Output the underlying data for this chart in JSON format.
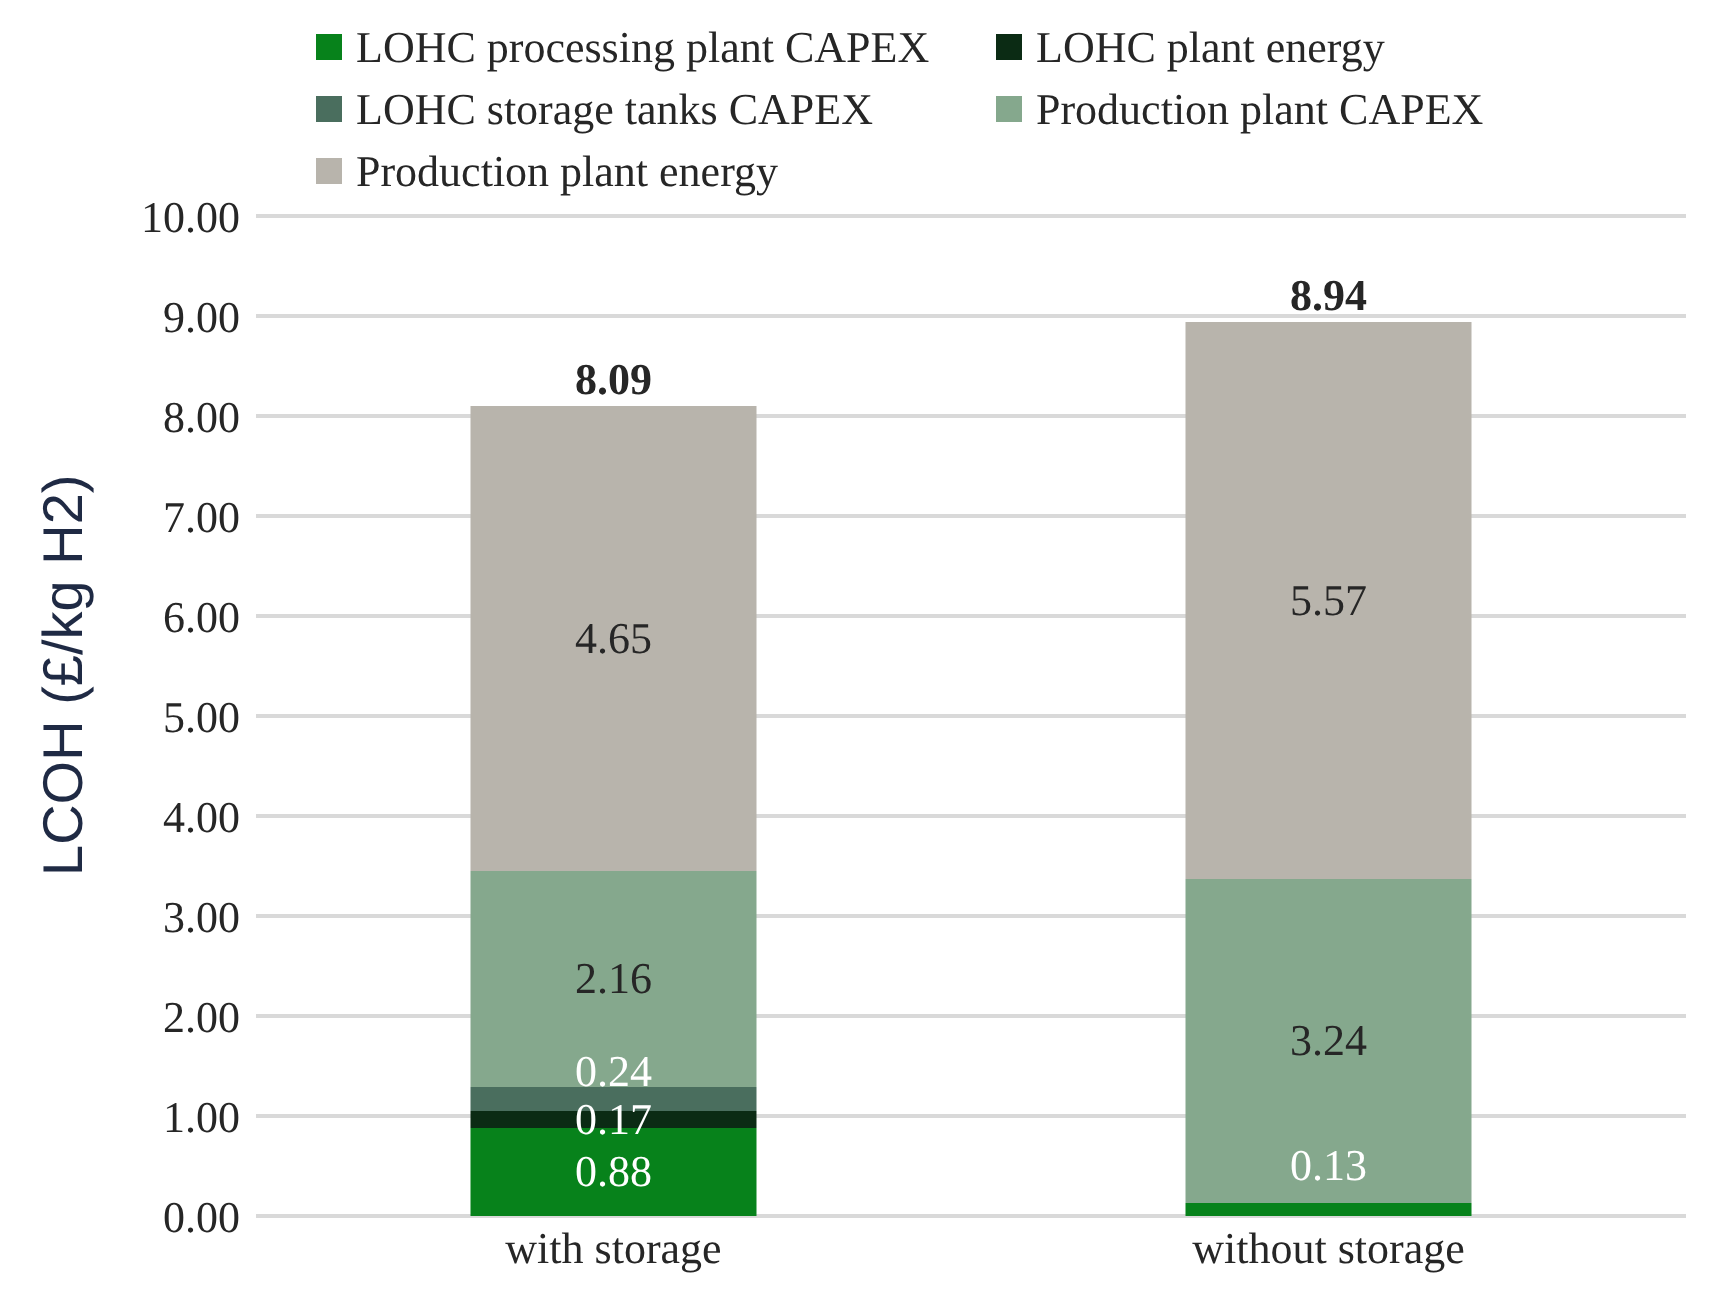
{
  "chart_data": {
    "type": "bar",
    "stacked": true,
    "ylabel": "LCOH (£/kg H2)",
    "categories": [
      "with storage",
      "without storage"
    ],
    "series": [
      {
        "name": "LOHC processing plant CAPEX",
        "color": "#07821b",
        "values": [
          0.88,
          0.13
        ]
      },
      {
        "name": "LOHC plant energy",
        "color": "#0b2b14",
        "values": [
          0.17,
          null
        ]
      },
      {
        "name": "LOHC storage tanks CAPEX",
        "color": "#4a6e5e",
        "values": [
          0.24,
          null
        ]
      },
      {
        "name": "Production plant CAPEX",
        "color": "#85a88d",
        "values": [
          2.16,
          3.24
        ]
      },
      {
        "name": "Production plant energy",
        "color": "#b8b4ac",
        "values": [
          4.65,
          5.57
        ]
      }
    ],
    "data_labels": true,
    "totals": [
      "8.09",
      "8.94"
    ],
    "ylim": [
      0,
      10
    ],
    "yticks": [
      {
        "value": 0,
        "label": "0.00"
      },
      {
        "value": 1,
        "label": "1.00"
      },
      {
        "value": 2,
        "label": "2.00"
      },
      {
        "value": 3,
        "label": "3.00"
      },
      {
        "value": 4,
        "label": "4.00"
      },
      {
        "value": 5,
        "label": "5.00"
      },
      {
        "value": 6,
        "label": "6.00"
      },
      {
        "value": 7,
        "label": "7.00"
      },
      {
        "value": 8,
        "label": "8.00"
      },
      {
        "value": 9,
        "label": "9.00"
      },
      {
        "value": 10,
        "label": "10.00"
      }
    ],
    "grid": "y",
    "legend": "top"
  }
}
